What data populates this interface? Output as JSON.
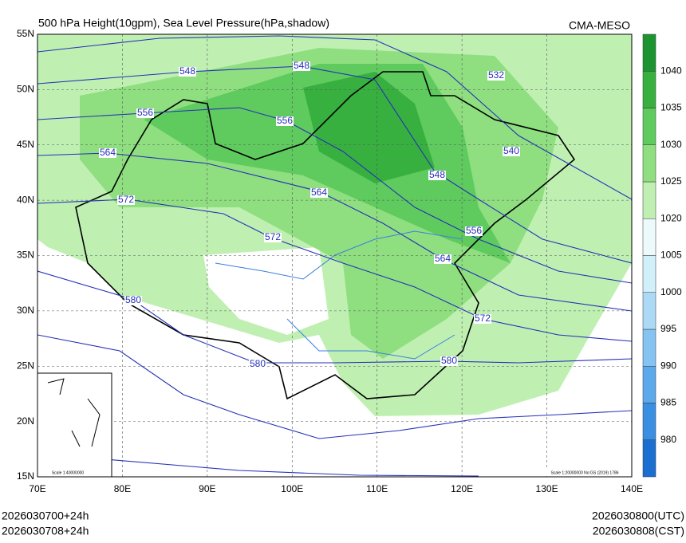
{
  "header": {
    "title": "500 hPa Height(10gpm), Sea Level Pressure(hPa,shadow)",
    "source": "CMA-MESO"
  },
  "lat_ticks": [
    {
      "value": 55,
      "label": "55N"
    },
    {
      "value": 50,
      "label": "50N"
    },
    {
      "value": 45,
      "label": "45N"
    },
    {
      "value": 40,
      "label": "40N"
    },
    {
      "value": 35,
      "label": "35N"
    },
    {
      "value": 30,
      "label": "30N"
    },
    {
      "value": 25,
      "label": "25N"
    },
    {
      "value": 20,
      "label": "20N"
    },
    {
      "value": 15,
      "label": "15N"
    }
  ],
  "lon_ticks": [
    {
      "value": 70,
      "label": "70E"
    },
    {
      "value": 80,
      "label": "80E"
    },
    {
      "value": 90,
      "label": "90E"
    },
    {
      "value": 100,
      "label": "100E"
    },
    {
      "value": 110,
      "label": "110E"
    },
    {
      "value": 120,
      "label": "120E"
    },
    {
      "value": 130,
      "label": "130E"
    },
    {
      "value": 140,
      "label": "140E"
    }
  ],
  "colorbar": {
    "levels": [
      980,
      985,
      990,
      995,
      1000,
      1005,
      1020,
      1025,
      1030,
      1035,
      1040
    ],
    "colors": [
      "#1a6fd0",
      "#3b8fe2",
      "#5ca9ec",
      "#84c3f2",
      "#acdaf6",
      "#d2f0fa",
      "#ecfafc",
      "#bff0b2",
      "#8fdf80",
      "#5fcb5e",
      "#37b040",
      "#1c9430"
    ]
  },
  "contour_labels": [
    "548",
    "548",
    "532",
    "556",
    "556",
    "540",
    "564",
    "548",
    "564",
    "572",
    "556",
    "572",
    "564",
    "580",
    "572",
    "580",
    "580"
  ],
  "scale_inset": "Scale 1:40000000",
  "scale_main": "Scale 1:20000000 No:GS (2019) 1786",
  "footer": {
    "left": [
      "2026030700+24h",
      "2026030708+24h"
    ],
    "right": [
      "2026030800(UTC)",
      "2026030808(CST)"
    ]
  }
}
